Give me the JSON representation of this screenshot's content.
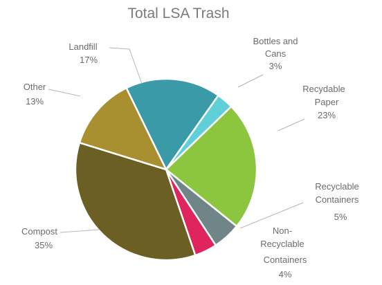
{
  "chart_data": {
    "type": "pie",
    "title": "Total LSA Trash",
    "slices": [
      {
        "label": "Landfill",
        "value": 17,
        "percent_label": "17%",
        "color": "#3a9aa8"
      },
      {
        "label": "Bottles and Cans",
        "value": 3,
        "percent_label": "3%",
        "color": "#5fcfd8"
      },
      {
        "label": "Recydable Paper",
        "value": 23,
        "percent_label": "23%",
        "color": "#8cc63f"
      },
      {
        "label": "Recyclable Containers",
        "value": 5,
        "percent_label": "5%",
        "color": "#6f8587"
      },
      {
        "label": "Non-Recyclable Containers",
        "value": 4,
        "percent_label": "4%",
        "color": "#e0245e"
      },
      {
        "label": "Compost",
        "value": 35,
        "percent_label": "35%",
        "color": "#6b5f24"
      },
      {
        "label": "Other",
        "value": 13,
        "percent_label": "13%",
        "color": "#a89030"
      }
    ]
  }
}
